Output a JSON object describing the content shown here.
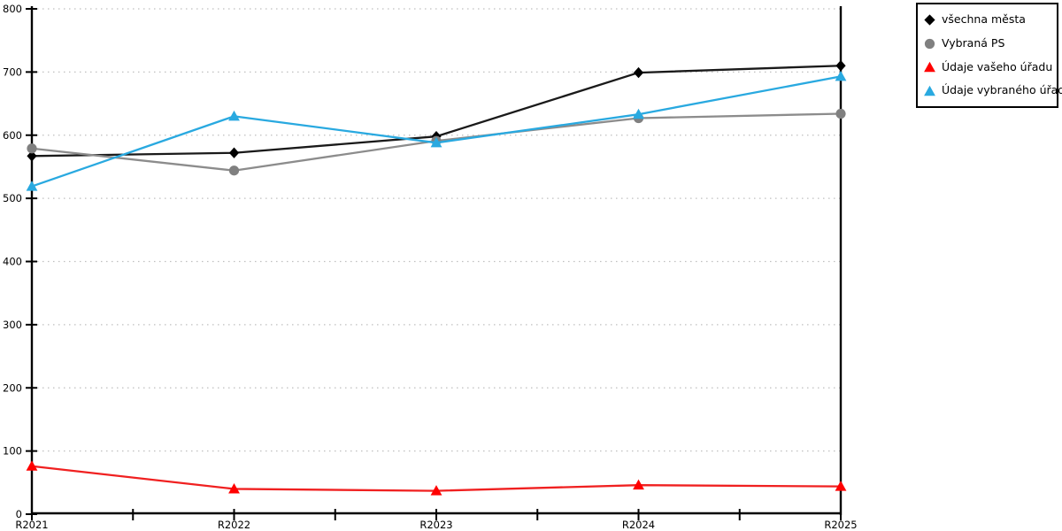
{
  "chart_data": {
    "type": "line",
    "categories": [
      "R2021",
      "R2022",
      "R2023",
      "R2024",
      "R2025"
    ],
    "series": [
      {
        "name": "všechna města",
        "marker": "diamond",
        "color": "#000000",
        "line_color": "#1a1a1a",
        "values": [
          567,
          572,
          598,
          699,
          710
        ]
      },
      {
        "name": "Vybraná PS",
        "marker": "circle",
        "color": "#808080",
        "line_color": "#8c8c8c",
        "values": [
          579,
          544,
          591,
          627,
          634
        ]
      },
      {
        "name": "Údaje vašeho úřadu",
        "marker": "triangle",
        "color": "#ff0000",
        "line_color": "#f02020",
        "values": [
          76,
          40,
          37,
          46,
          44
        ]
      },
      {
        "name": "Údaje vybraného úřadu",
        "marker": "triangle",
        "color": "#29a9e0",
        "line_color": "#29a9e0",
        "values": [
          519,
          630,
          588,
          633,
          693
        ]
      }
    ],
    "yticks": [
      0,
      100,
      200,
      300,
      400,
      500,
      600,
      700,
      800
    ],
    "ylim": [
      0,
      800
    ],
    "title": "",
    "xlabel": "",
    "ylabel": "",
    "grid": "horizontal-dotted",
    "legend_position": "outside-top-right"
  },
  "colors": {
    "background": "#ffffff",
    "axis": "#000000",
    "gridline": "#bfbfbf",
    "tick_label": "#000000"
  }
}
